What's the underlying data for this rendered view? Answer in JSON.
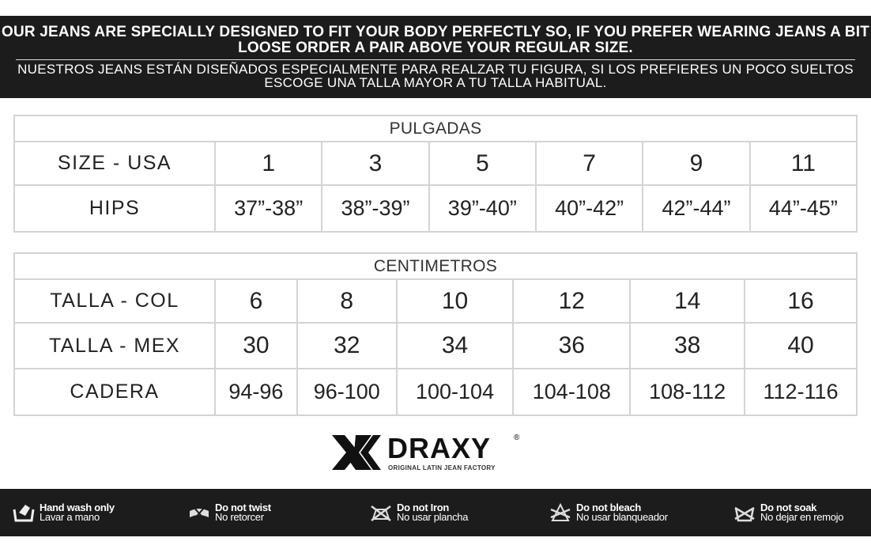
{
  "notice": {
    "english": "OUR JEANS ARE SPECIALLY DESIGNED TO FIT YOUR BODY PERFECTLY SO, IF YOU PREFER WEARING JEANS A BIT LOOSE ORDER A PAIR ABOVE YOUR REGULAR SIZE.",
    "spanish": "NUESTROS JEANS ESTÁN DISEÑADOS ESPECIALMENTE PARA REALZAR TU FIGURA, SI LOS PREFIERES UN POCO SUELTOS ESCOGE UNA TALLA MAYOR A TU TALLA HABITUAL."
  },
  "inches_table": {
    "title": "PULGADAS",
    "rows": [
      {
        "label": "SIZE - USA",
        "values": [
          "1",
          "3",
          "5",
          "7",
          "9",
          "11"
        ]
      },
      {
        "label": "HIPS",
        "values": [
          "37”-38”",
          "38”-39”",
          "39”-40”",
          "40”-42”",
          "42”-44”",
          "44”-45”"
        ]
      }
    ]
  },
  "cm_table": {
    "title": "CENTIMETROS",
    "rows": [
      {
        "label": "TALLA - COL",
        "values": [
          "6",
          "8",
          "10",
          "12",
          "14",
          "16"
        ]
      },
      {
        "label": "TALLA - MEX",
        "values": [
          "30",
          "32",
          "34",
          "36",
          "38",
          "40"
        ]
      },
      {
        "label": "CADERA",
        "values": [
          "94-96",
          "96-100",
          "100-104",
          "104-108",
          "108-112",
          "112-116"
        ]
      }
    ]
  },
  "brand": {
    "name": "DRAXY",
    "registered": "®",
    "tagline": "ORIGINAL LATIN JEAN FACTORY"
  },
  "care": [
    {
      "icon": "hand-wash-icon",
      "en": "Hand wash only",
      "es": "Lavar a mano"
    },
    {
      "icon": "no-twist-icon",
      "en": "Do not twist",
      "es": "No retorcer"
    },
    {
      "icon": "no-iron-icon",
      "en": "Do not Iron",
      "es": "No usar plancha"
    },
    {
      "icon": "no-bleach-icon",
      "en": "Do not bleach",
      "es": "No usar blanqueador"
    },
    {
      "icon": "no-soak-icon",
      "en": "Do not soak",
      "es": "No dejar en remojo"
    }
  ]
}
